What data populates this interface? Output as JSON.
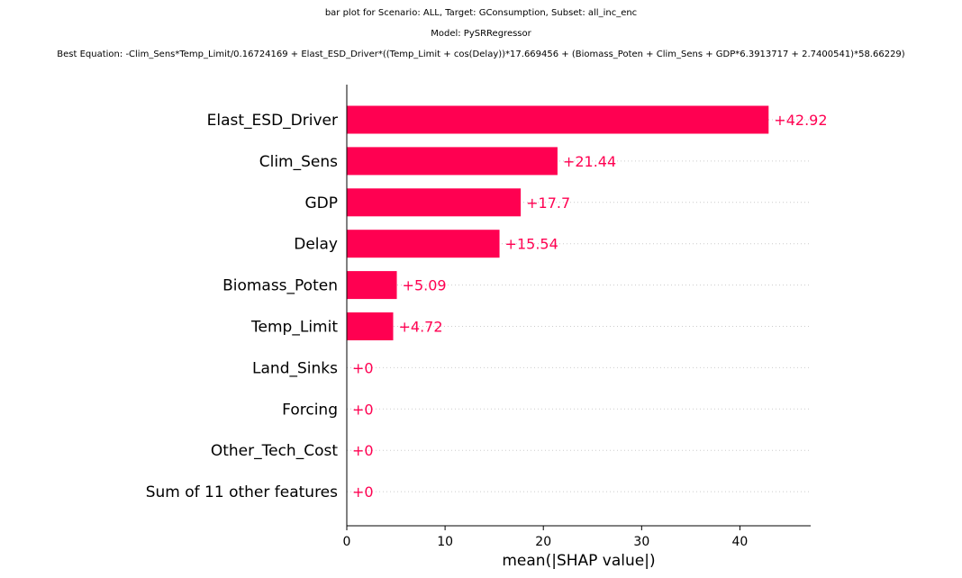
{
  "chart_data": {
    "type": "bar",
    "orientation": "horizontal",
    "title_lines": [
      "bar plot for Scenario: ALL, Target: GConsumption, Subset: all_inc_enc",
      "Model: PySRRegressor",
      "Best Equation: -Clim_Sens*Temp_Limit/0.16724169 + Elast_ESD_Driver*((Temp_Limit + cos(Delay))*17.669456 + (Biomass_Poten + Clim_Sens + GDP*6.3913717 + 2.7400541)*58.66229)"
    ],
    "categories": [
      "Elast_ESD_Driver",
      "Clim_Sens",
      "GDP",
      "Delay",
      "Biomass_Poten",
      "Temp_Limit",
      "Land_Sinks",
      "Forcing",
      "Other_Tech_Cost",
      "Sum of 11 other features"
    ],
    "values": [
      42.92,
      21.44,
      17.7,
      15.54,
      5.09,
      4.72,
      0,
      0,
      0,
      0
    ],
    "value_labels": [
      "+42.92",
      "+21.44",
      "+17.7",
      "+15.54",
      "+5.09",
      "+4.72",
      "+0",
      "+0",
      "+0",
      "+0"
    ],
    "xlabel": "mean(|SHAP value|)",
    "ylabel": "",
    "xlim": [
      0,
      47.2
    ],
    "xticks": [
      0,
      10,
      20,
      30,
      40
    ],
    "xtick_labels": [
      "0",
      "10",
      "20",
      "30",
      "40"
    ],
    "grid": "dotted row guides",
    "legend": "none",
    "bar_color": "#ff0051",
    "label_color": "#ff0051"
  }
}
